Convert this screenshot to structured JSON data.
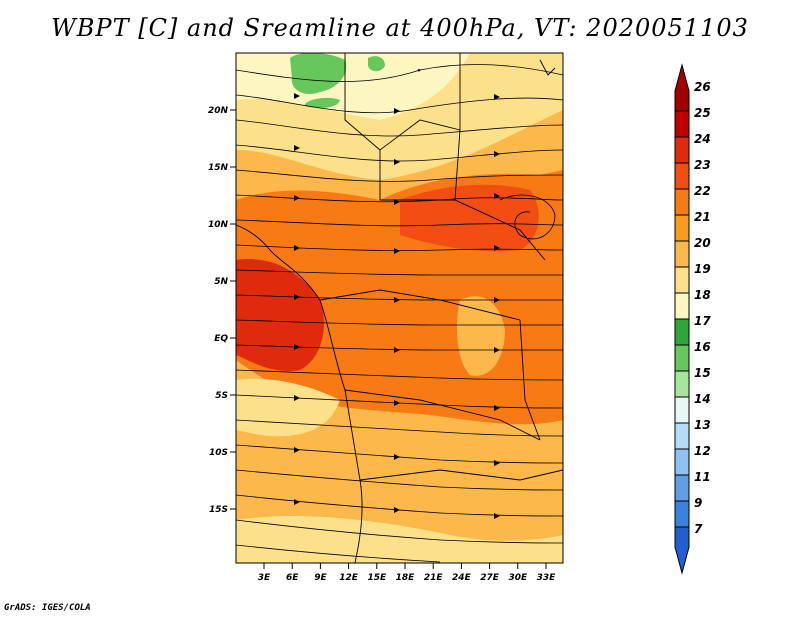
{
  "title": "WBPT [C] and Sreamline at 400hPa, VT: 2020051103",
  "credit": "GrADS: IGES/COLA",
  "map": {
    "lat_ticks": [
      "20N",
      "15N",
      "10N",
      "5N",
      "EQ",
      "5S",
      "10S",
      "15S"
    ],
    "lon_ticks": [
      "3E",
      "6E",
      "9E",
      "12E",
      "15E",
      "18E",
      "21E",
      "24E",
      "27E",
      "30E",
      "33E"
    ]
  },
  "colorbar": {
    "levels": [
      {
        "label": "26",
        "color": "#a00000"
      },
      {
        "label": "25",
        "color": "#c00000"
      },
      {
        "label": "24",
        "color": "#e02a0e"
      },
      {
        "label": "23",
        "color": "#f24d12"
      },
      {
        "label": "22",
        "color": "#f77a14"
      },
      {
        "label": "21",
        "color": "#fb9b1e"
      },
      {
        "label": "20",
        "color": "#fcb84a"
      },
      {
        "label": "19",
        "color": "#fde08a"
      },
      {
        "label": "18",
        "color": "#fef6c0"
      },
      {
        "label": "17",
        "color": "#2ea63a"
      },
      {
        "label": "16",
        "color": "#66c85a"
      },
      {
        "label": "15",
        "color": "#a6e59a"
      },
      {
        "label": "14",
        "color": "#e6f8f6"
      },
      {
        "label": "13",
        "color": "#b5dcf7"
      },
      {
        "label": "12",
        "color": "#8ec2f2"
      },
      {
        "label": "11",
        "color": "#5ea0e8"
      },
      {
        "label": "9",
        "color": "#3a82de"
      },
      {
        "label": "7",
        "color": "#1f5fd2"
      }
    ]
  }
}
